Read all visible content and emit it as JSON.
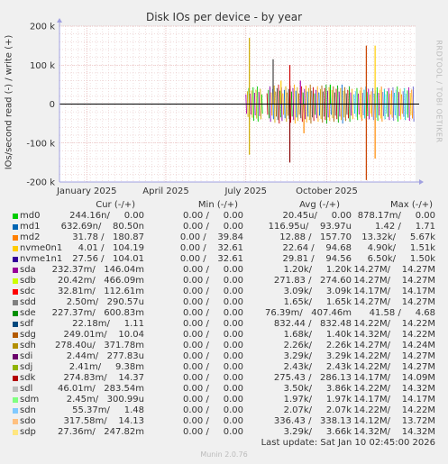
{
  "chart_data": {
    "type": "line",
    "title": "Disk IOs per device - by year",
    "ylabel": "IOs/second read (-) / write (+)",
    "ylim": [
      -200000,
      200000
    ],
    "yticks": [
      {
        "value": 200000,
        "label": "200 k"
      },
      {
        "value": 100000,
        "label": "100 k"
      },
      {
        "value": 0,
        "label": "0"
      },
      {
        "value": -100000,
        "label": "-100 k"
      },
      {
        "value": -200000,
        "label": "-200 k"
      }
    ],
    "xrange": [
      "2024-12-01",
      "2026-01-10"
    ],
    "xticks": [
      {
        "date": "2025-01-01",
        "label": "January 2025"
      },
      {
        "date": "2025-04-01",
        "label": "April 2025"
      },
      {
        "date": "2025-07-01",
        "label": "July 2025"
      },
      {
        "date": "2025-10-01",
        "label": "October 2025"
      }
    ],
    "grid": true,
    "spikes": [
      {
        "date": "2025-07-05",
        "value": 170000,
        "color": "#ccaa00"
      },
      {
        "date": "2025-07-05",
        "value": -130000,
        "color": "#ccaa00"
      },
      {
        "date": "2025-08-01",
        "value": 115000,
        "color": "#444444"
      },
      {
        "date": "2025-08-10",
        "value": 60000,
        "color": "#ffcc00"
      },
      {
        "date": "2025-08-20",
        "value": 100000,
        "color": "#cc0000"
      },
      {
        "date": "2025-08-20",
        "value": -150000,
        "color": "#880000"
      },
      {
        "date": "2025-09-01",
        "value": 60000,
        "color": "#aa00aa"
      },
      {
        "date": "2025-09-05",
        "value": -75000,
        "color": "#ff8800"
      },
      {
        "date": "2025-10-05",
        "value": 50000,
        "color": "#00cc00"
      },
      {
        "date": "2025-11-15",
        "value": 150000,
        "color": "#cc4400"
      },
      {
        "date": "2025-11-15",
        "value": -195000,
        "color": "#cc4400"
      },
      {
        "date": "2025-11-25",
        "value": 150000,
        "color": "#ffcc00"
      },
      {
        "date": "2025-11-25",
        "value": -140000,
        "color": "#ff8800"
      }
    ],
    "oscillation_bands": [
      {
        "from": "2025-07-01",
        "to": "2025-07-20",
        "amp": 45000,
        "colors": [
          "#aa00aa",
          "#ccaa00",
          "#00cc00"
        ]
      },
      {
        "from": "2025-07-25",
        "to": "2025-10-30",
        "amp": 50000,
        "colors": [
          "#cc0000",
          "#00aa00",
          "#8800aa",
          "#ffaa00",
          "#0066cc",
          "#ccaa00",
          "#aa6600",
          "#444444"
        ]
      },
      {
        "from": "2025-11-01",
        "to": "2026-01-08",
        "amp": 45000,
        "colors": [
          "#00cccc",
          "#66ccff",
          "#00cc00",
          "#aa00aa",
          "#ffcc00",
          "#ff8800",
          "#6666cc"
        ]
      }
    ]
  },
  "legend": {
    "headers": {
      "cur": "Cur (-/+)",
      "min": "Min (-/+)",
      "avg": "Avg (-/+)",
      "max": "Max (-/+)"
    },
    "rows": [
      {
        "name": "md0",
        "color": "#00cc00",
        "cur": "244.16n/     0.00",
        "min": "0.00 /     0.00",
        "avg": "20.45u/     0.00",
        "max": "878.17m/     0.00"
      },
      {
        "name": "md1",
        "color": "#0066b3",
        "cur": "632.69n/    80.50n",
        "min": "0.00 /     0.00",
        "avg": "116.95u/    93.97u",
        "max": "1.42 /     1.71"
      },
      {
        "name": "md2",
        "color": "#ff8000",
        "cur": "31.78 /   180.87",
        "min": "0.00 /    39.84",
        "avg": "12.88 /   157.70",
        "max": "13.32k/     5.67k"
      },
      {
        "name": "nvme0n1",
        "color": "#ffcc00",
        "cur": "4.01 /   104.19",
        "min": "0.00 /    32.61",
        "avg": "22.64 /    94.68",
        "max": "4.90k/     1.51k"
      },
      {
        "name": "nvme1n1",
        "color": "#330099",
        "cur": "27.56 /   104.01",
        "min": "0.00 /    32.61",
        "avg": "29.81 /    94.56",
        "max": "6.50k/     1.50k"
      },
      {
        "name": "sda",
        "color": "#990099",
        "cur": "232.37m/   146.04m",
        "min": "0.00 /     0.00",
        "avg": "1.20k/     1.20k",
        "max": "14.27M/    14.27M"
      },
      {
        "name": "sdb",
        "color": "#ccff00",
        "cur": "20.42m/   466.09m",
        "min": "0.00 /     0.00",
        "avg": "271.83 /   274.60",
        "max": "14.27M/    14.27M"
      },
      {
        "name": "sdc",
        "color": "#ff0000",
        "cur": "32.81m/   112.61m",
        "min": "0.00 /     0.00",
        "avg": "3.09k/     3.09k",
        "max": "14.17M/    14.17M"
      },
      {
        "name": "sdd",
        "color": "#808080",
        "cur": "2.50m/   290.57u",
        "min": "0.00 /     0.00",
        "avg": "1.65k/     1.65k",
        "max": "14.27M/    14.27M"
      },
      {
        "name": "sde",
        "color": "#008f00",
        "cur": "227.37m/   600.83m",
        "min": "0.00 /     0.00",
        "avg": "76.39m/   407.46m",
        "max": "41.58 /     4.68"
      },
      {
        "name": "sdf",
        "color": "#00487d",
        "cur": "22.18m/     1.11",
        "min": "0.00 /     0.00",
        "avg": "832.44 /   832.48",
        "max": "14.22M/    14.22M"
      },
      {
        "name": "sdg",
        "color": "#b35a00",
        "cur": "249.01m/    10.04",
        "min": "0.00 /     0.00",
        "avg": "1.68k/     1.40k",
        "max": "14.32M/    14.22M"
      },
      {
        "name": "sdh",
        "color": "#b38f00",
        "cur": "278.40u/   371.78m",
        "min": "0.00 /     0.00",
        "avg": "2.26k/     2.26k",
        "max": "14.27M/    14.24M"
      },
      {
        "name": "sdi",
        "color": "#6b006b",
        "cur": "2.44m/   277.83u",
        "min": "0.00 /     0.00",
        "avg": "3.29k/     3.29k",
        "max": "14.22M/    14.27M"
      },
      {
        "name": "sdj",
        "color": "#8fb300",
        "cur": "2.41m/     9.38m",
        "min": "0.00 /     0.00",
        "avg": "2.43k/     2.43k",
        "max": "14.22M/    14.27M"
      },
      {
        "name": "sdk",
        "color": "#b30000",
        "cur": "274.83m/    14.37",
        "min": "0.00 /     0.00",
        "avg": "275.43 /   286.13",
        "max": "14.17M/    14.09M"
      },
      {
        "name": "sdl",
        "color": "#bebebe",
        "cur": "46.01m/   283.54m",
        "min": "0.00 /     0.00",
        "avg": "3.50k/     3.86k",
        "max": "14.22M/    14.32M"
      },
      {
        "name": "sdm",
        "color": "#80ff80",
        "cur": "2.45m/   300.99u",
        "min": "0.00 /     0.00",
        "avg": "1.97k/     1.97k",
        "max": "14.17M/    14.17M"
      },
      {
        "name": "sdn",
        "color": "#80c9ff",
        "cur": "55.37m/     1.48",
        "min": "0.00 /     0.00",
        "avg": "2.07k/     2.07k",
        "max": "14.22M/    14.22M"
      },
      {
        "name": "sdo",
        "color": "#ffc080",
        "cur": "317.58m/    14.13",
        "min": "0.00 /     0.00",
        "avg": "336.43 /   338.13",
        "max": "14.12M/    13.72M"
      },
      {
        "name": "sdp",
        "color": "#ffe680",
        "cur": "27.36m/   247.82m",
        "min": "0.00 /     0.00",
        "avg": "3.29k/     3.66k",
        "max": "14.32M/    14.32M"
      }
    ]
  },
  "footer": {
    "last_update": "Last update: Sat Jan 10 02:45:00 2026",
    "munin": "Munin 2.0.76"
  },
  "side_label": "RRDTOOL / TOBI OETIKER"
}
